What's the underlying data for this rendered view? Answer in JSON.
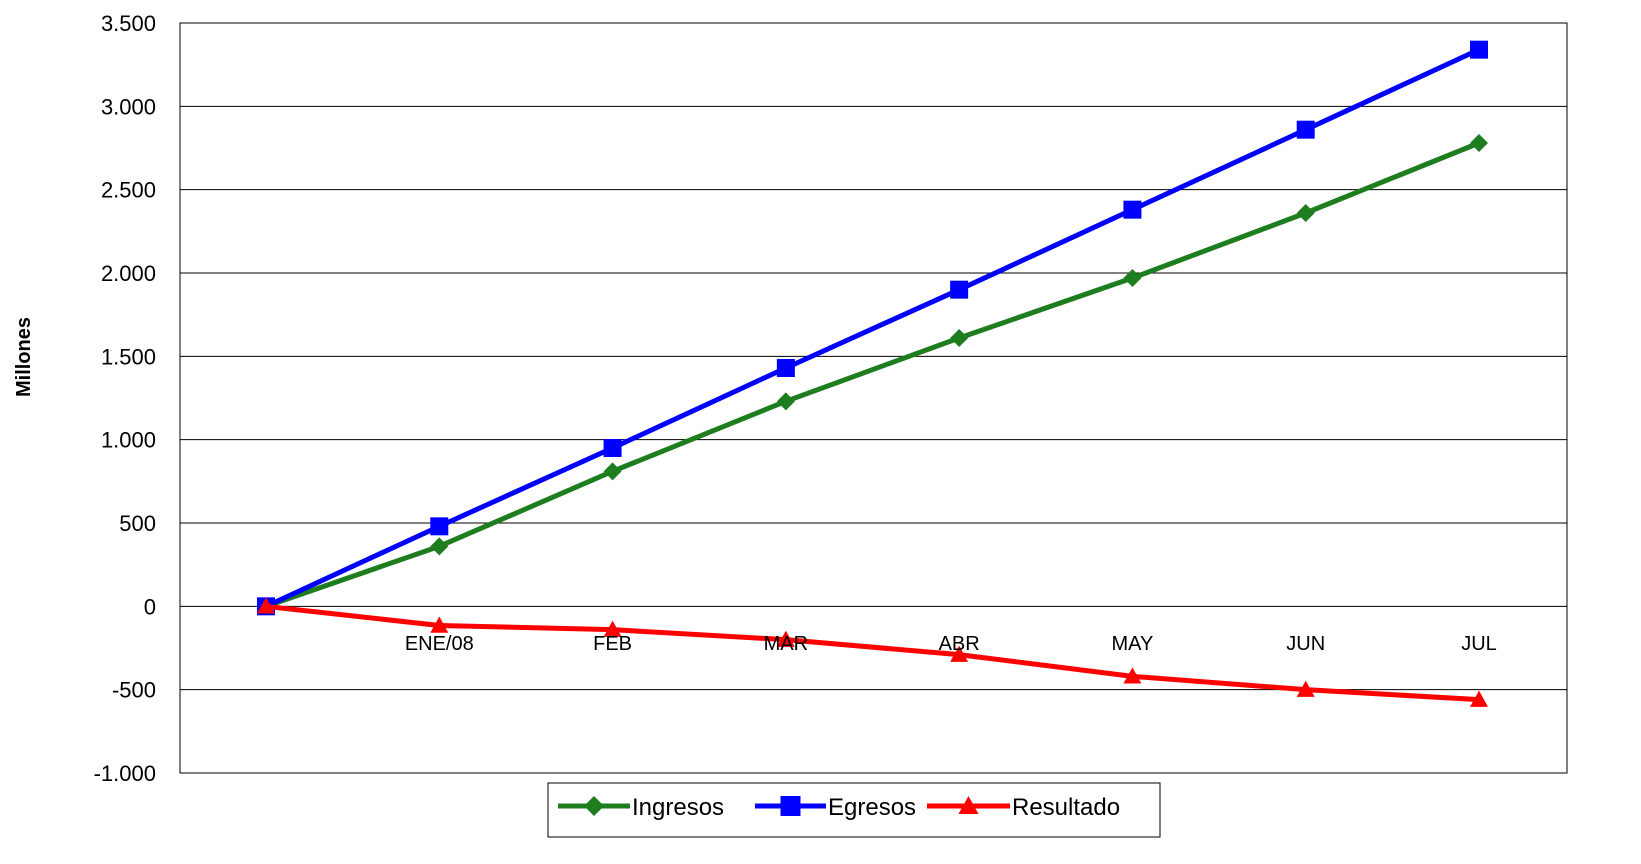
{
  "chart_data": {
    "type": "line",
    "title": "",
    "xlabel": "",
    "ylabel": "Millones",
    "categories": [
      "",
      "ENE/08",
      "FEB",
      "MAR",
      "ABR",
      "MAY",
      "JUN",
      "JUL"
    ],
    "series": [
      {
        "name": "Ingresos",
        "color": "#1e7d1e",
        "marker": "diamond",
        "values": [
          0,
          360,
          810,
          1230,
          1610,
          1970,
          2360,
          2780
        ]
      },
      {
        "name": "Egresos",
        "color": "#0000ff",
        "marker": "square",
        "values": [
          0,
          480,
          950,
          1430,
          1900,
          2380,
          2860,
          3340
        ]
      },
      {
        "name": "Resultado",
        "color": "#ff0000",
        "marker": "triangle",
        "values": [
          0,
          -115,
          -140,
          -200,
          -290,
          -420,
          -500,
          -560
        ]
      }
    ],
    "ylim": [
      -1000,
      3500
    ],
    "yticks": [
      -1000,
      -500,
      0,
      500,
      1000,
      1500,
      2000,
      2500,
      3000,
      3500
    ],
    "ytick_labels": [
      "-1.000",
      "-500",
      "0",
      "500",
      "1.000",
      "1.500",
      "2.000",
      "2.500",
      "3.000",
      "3.500"
    ],
    "grid": true,
    "legend_position": "bottom"
  }
}
